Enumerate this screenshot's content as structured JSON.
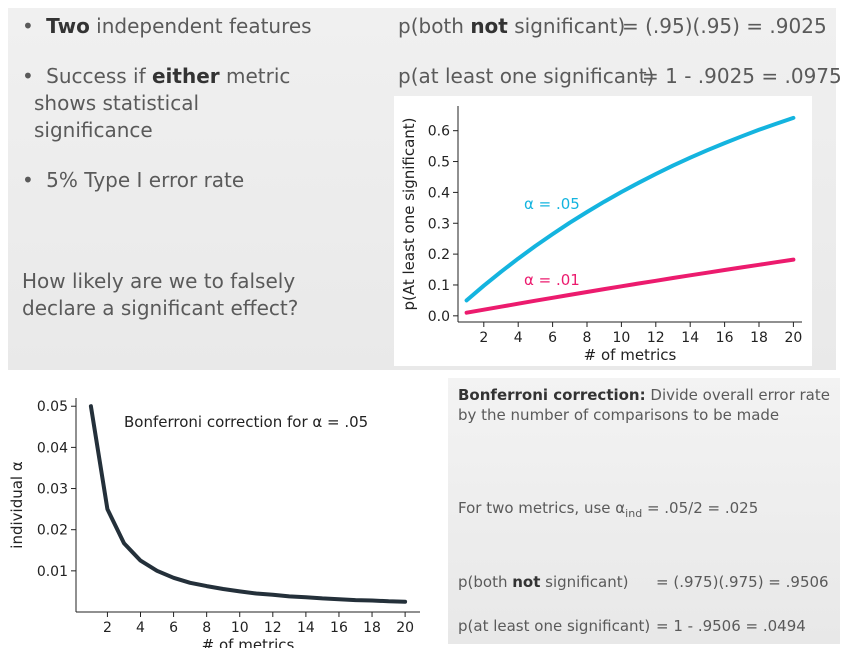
{
  "top_left": {
    "bullet1_bold": "Two",
    "bullet1_rest": " independent features",
    "bullet2_pre": "Success if ",
    "bullet2_bold": "either",
    "bullet2_post": " metric",
    "bullet2_line2": "shows statistical",
    "bullet2_line3": "significance",
    "bullet3": "5% Type I error rate",
    "question_line1": "How likely are we to falsely",
    "question_line2": "declare a significant effect?"
  },
  "top_right": {
    "eq1_pre": "p(both ",
    "eq1_bold": "not",
    "eq1_post": " significant)",
    "eq1_value": "= (.95)(.95) = .9025",
    "eq2_label": "p(at least one significant)",
    "eq2_value": "= 1 - .9025 = .0975"
  },
  "bottom_right": {
    "heading_bold": "Bonferroni correction:",
    "heading_rest": " Divide overall error rate",
    "heading_line2": "by the number of comparisons to be made",
    "two_metrics_pre": "For two metrics, use α",
    "two_metrics_sub": "ind",
    "two_metrics_post": " = .05/2 = .025",
    "eq1_pre": "p(both ",
    "eq1_bold": "not",
    "eq1_post": " significant)",
    "eq1_value": "= (.975)(.975)  = .9506",
    "eq2_label": "p(at least one significant)",
    "eq2_value": "= 1 - .9506 = .0494"
  },
  "colors": {
    "cyan": "#14b4df",
    "magenta": "#ec1b6e",
    "dark": "#24303a"
  },
  "chart_data": [
    {
      "type": "line",
      "title": "",
      "xlabel": "# of metrics",
      "ylabel": "p(At least one significant)",
      "xlim": [
        0.5,
        20.5
      ],
      "ylim": [
        -0.02,
        0.68
      ],
      "x_ticks": [
        2,
        4,
        6,
        8,
        10,
        12,
        14,
        16,
        18,
        20
      ],
      "y_ticks": [
        0.0,
        0.1,
        0.2,
        0.3,
        0.4,
        0.5,
        0.6
      ],
      "y_tick_labels": [
        "0.0",
        "0.1",
        "0.2",
        "0.3",
        "0.4",
        "0.5",
        "0.6"
      ],
      "x": [
        1,
        2,
        3,
        4,
        5,
        6,
        7,
        8,
        9,
        10,
        11,
        12,
        13,
        14,
        15,
        16,
        17,
        18,
        19,
        20
      ],
      "series": [
        {
          "name": "α = .05",
          "color": "#14b4df",
          "values": [
            0.05,
            0.0975,
            0.1426,
            0.1855,
            0.2262,
            0.2649,
            0.3017,
            0.3366,
            0.3698,
            0.4013,
            0.4312,
            0.4596,
            0.4867,
            0.5123,
            0.5367,
            0.5599,
            0.5819,
            0.6028,
            0.6226,
            0.6415
          ]
        },
        {
          "name": "α = .01",
          "color": "#ec1b6e",
          "values": [
            0.01,
            0.0199,
            0.0297,
            0.0394,
            0.049,
            0.0585,
            0.0679,
            0.0773,
            0.0865,
            0.0956,
            0.1047,
            0.1136,
            0.1225,
            0.1313,
            0.1399,
            0.1485,
            0.1571,
            0.1655,
            0.1738,
            0.1821
          ]
        }
      ],
      "legend": "inline"
    },
    {
      "type": "line",
      "title": "Bonferroni correction for α = .05",
      "xlabel": "# of metrics",
      "ylabel": "individual α",
      "xlim": [
        0.1,
        20.9
      ],
      "ylim": [
        0.0,
        0.052
      ],
      "x_ticks": [
        2,
        4,
        6,
        8,
        10,
        12,
        14,
        16,
        18,
        20
      ],
      "y_ticks": [
        0.01,
        0.02,
        0.03,
        0.04,
        0.05
      ],
      "y_tick_labels": [
        "0.01",
        "0.02",
        "0.03",
        "0.04",
        "0.05"
      ],
      "x": [
        1,
        2,
        3,
        4,
        5,
        6,
        7,
        8,
        9,
        10,
        11,
        12,
        13,
        14,
        15,
        16,
        17,
        18,
        19,
        20
      ],
      "series": [
        {
          "color": "#24303a",
          "values": [
            0.05,
            0.025,
            0.0167,
            0.0125,
            0.01,
            0.0083,
            0.0071,
            0.0063,
            0.0056,
            0.005,
            0.0045,
            0.0042,
            0.0038,
            0.0036,
            0.0033,
            0.0031,
            0.0029,
            0.0028,
            0.0026,
            0.0025
          ]
        }
      ]
    }
  ]
}
